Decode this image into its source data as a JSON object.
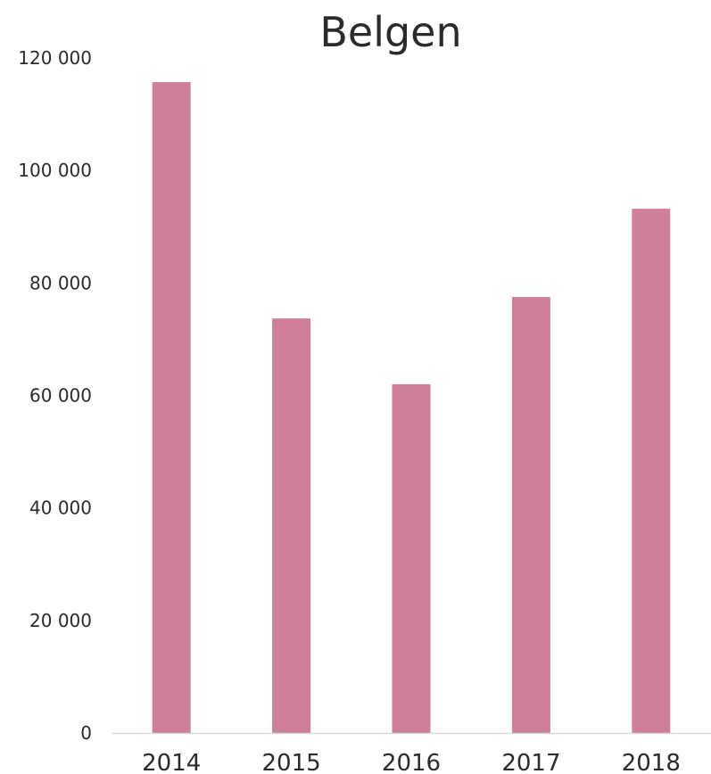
{
  "chart_data": {
    "type": "bar",
    "title": "Belgen",
    "xlabel": "",
    "ylabel": "",
    "categories": [
      "2014",
      "2015",
      "2016",
      "2017",
      "2018"
    ],
    "values": [
      115700,
      73700,
      62000,
      77500,
      93200
    ],
    "ylim": [
      0,
      120000
    ],
    "y_ticks": [
      0,
      20000,
      40000,
      60000,
      80000,
      100000,
      120000
    ],
    "y_tick_labels": [
      "0",
      "20 000",
      "40 000",
      "60 000",
      "80 000",
      "100 000",
      "120 000"
    ],
    "grid": false,
    "legend": "none",
    "bar_color": "#d07f98",
    "axis_color": "#d9d9d9"
  }
}
